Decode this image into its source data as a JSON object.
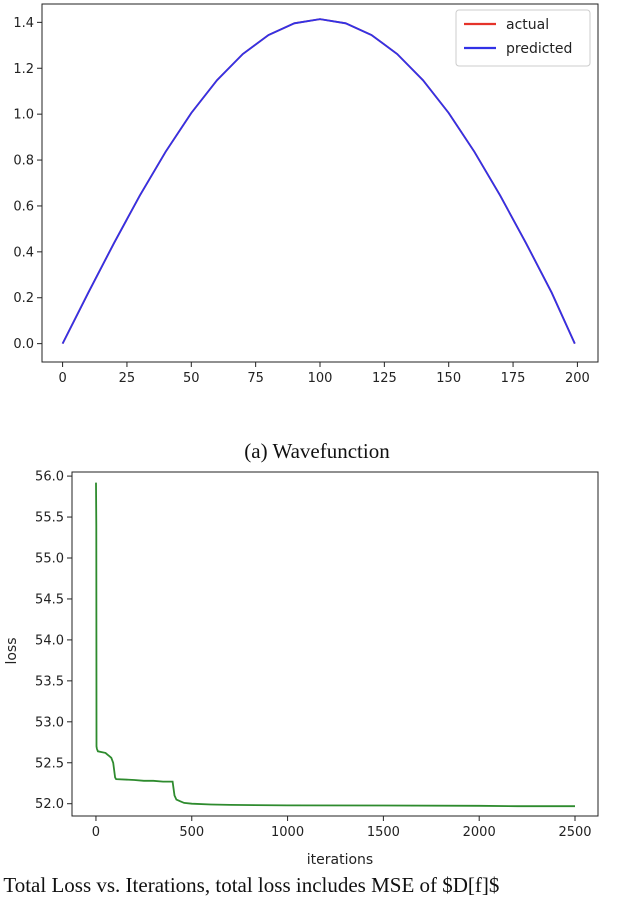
{
  "chart_data": [
    {
      "type": "line",
      "x_domain": [
        -8,
        208
      ],
      "ylim": [
        -0.08,
        1.48
      ],
      "xticks": [
        0,
        25,
        50,
        75,
        100,
        125,
        150,
        175,
        200
      ],
      "yticks": [
        0.0,
        0.2,
        0.4,
        0.6,
        0.8,
        1.0,
        1.2,
        1.4
      ],
      "xtick_labels": [
        "0",
        "25",
        "50",
        "75",
        "100",
        "125",
        "150",
        "175",
        "200"
      ],
      "ytick_labels": [
        "0.0",
        "0.2",
        "0.4",
        "0.6",
        "0.8",
        "1.0",
        "1.2",
        "1.4"
      ],
      "legend_position": "top-right",
      "series": [
        {
          "name": "actual",
          "color": "#e5332a",
          "x": [
            0,
            10,
            20,
            30,
            40,
            50,
            60,
            70,
            80,
            90,
            100,
            110,
            120,
            130,
            140,
            150,
            160,
            170,
            180,
            190,
            199
          ],
          "y": [
            0,
            0.222,
            0.439,
            0.645,
            0.836,
            1.005,
            1.148,
            1.262,
            1.345,
            1.396,
            1.414,
            1.396,
            1.345,
            1.262,
            1.148,
            1.005,
            0.836,
            0.645,
            0.439,
            0.222,
            0
          ]
        },
        {
          "name": "predicted",
          "color": "#3232e6",
          "x": [
            0,
            10,
            20,
            30,
            40,
            50,
            60,
            70,
            80,
            90,
            100,
            110,
            120,
            130,
            140,
            150,
            160,
            170,
            180,
            190,
            199
          ],
          "y": [
            0,
            0.222,
            0.439,
            0.645,
            0.836,
            1.005,
            1.148,
            1.262,
            1.345,
            1.396,
            1.414,
            1.396,
            1.345,
            1.262,
            1.148,
            1.005,
            0.836,
            0.645,
            0.439,
            0.222,
            0
          ]
        }
      ]
    },
    {
      "type": "line",
      "x_domain": [
        -125,
        2620
      ],
      "ylim": [
        51.85,
        56.05
      ],
      "xlabel": "iterations",
      "ylabel": "loss",
      "xticks": [
        0,
        500,
        1000,
        1500,
        2000,
        2500
      ],
      "yticks": [
        52.0,
        52.5,
        53.0,
        53.5,
        54.0,
        54.5,
        55.0,
        55.5,
        56.0
      ],
      "xtick_labels": [
        "0",
        "500",
        "1000",
        "1500",
        "2000",
        "2500"
      ],
      "ytick_labels": [
        "52.0",
        "52.5",
        "53.0",
        "53.5",
        "54.0",
        "54.5",
        "55.0",
        "55.5",
        "56.0"
      ],
      "series": [
        {
          "color": "#2e8b2e",
          "x": [
            0,
            2,
            3,
            5,
            10,
            30,
            50,
            60,
            70,
            80,
            90,
            100,
            105,
            200,
            250,
            300,
            350,
            400,
            410,
            420,
            440,
            460,
            500,
            600,
            700,
            1000,
            1500,
            2000,
            2200,
            2500
          ],
          "y": [
            55.92,
            55.4,
            52.7,
            52.67,
            52.64,
            52.63,
            52.62,
            52.6,
            52.58,
            52.56,
            52.5,
            52.32,
            52.3,
            52.29,
            52.28,
            52.28,
            52.27,
            52.27,
            52.1,
            52.05,
            52.03,
            52.01,
            52.0,
            51.99,
            51.985,
            51.98,
            51.978,
            51.975,
            51.97,
            51.97
          ]
        }
      ]
    }
  ],
  "captions": {
    "top": "(a) Wavefunction",
    "bottom": "(b) Total Loss vs. Iterations, total loss includes MSE of $D[f]$"
  }
}
